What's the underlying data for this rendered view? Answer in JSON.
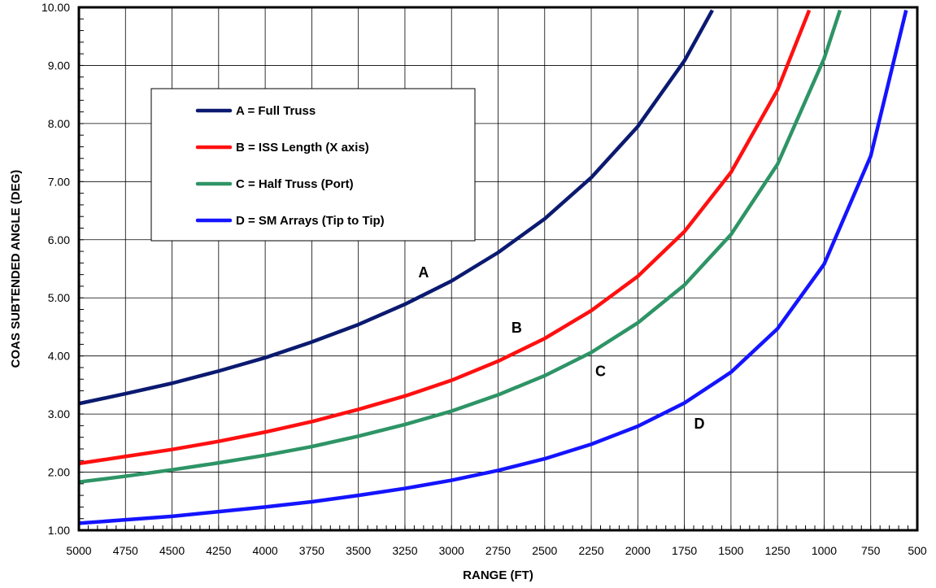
{
  "chart_data": {
    "type": "line",
    "title": "",
    "xlabel": "RANGE (FT)",
    "ylabel": "COAS SUBTENDED ANGLE (DEG)",
    "xlim": [
      5000,
      500
    ],
    "x_reversed": true,
    "ylim": [
      1.0,
      10.0
    ],
    "grid": true,
    "legend_position": "top-left",
    "x_ticks": [
      "5000",
      "4750",
      "4500",
      "4250",
      "4000",
      "3750",
      "3500",
      "3250",
      "3000",
      "2750",
      "2500",
      "2250",
      "2000",
      "1750",
      "1500",
      "1250",
      "1000",
      "750",
      "500"
    ],
    "y_ticks": [
      "1.00",
      "2.00",
      "3.00",
      "4.00",
      "5.00",
      "6.00",
      "7.00",
      "8.00",
      "9.00",
      "10.00"
    ],
    "series": [
      {
        "name": "A = Full Truss",
        "label": "A",
        "label_at": [
          3150,
          5.35
        ],
        "color": "#0b1a70",
        "points": [
          [
            5000,
            3.18
          ],
          [
            4750,
            3.35
          ],
          [
            4500,
            3.53
          ],
          [
            4250,
            3.74
          ],
          [
            4000,
            3.97
          ],
          [
            3750,
            4.24
          ],
          [
            3500,
            4.54
          ],
          [
            3250,
            4.89
          ],
          [
            3000,
            5.29
          ],
          [
            2750,
            5.78
          ],
          [
            2500,
            6.36
          ],
          [
            2250,
            7.07
          ],
          [
            2000,
            7.95
          ],
          [
            1750,
            9.08
          ],
          [
            1600,
            9.95
          ]
        ]
      },
      {
        "name": "B = ISS Length (X axis)",
        "label": "B",
        "label_at": [
          2650,
          4.4
        ],
        "color": "#ff1010",
        "points": [
          [
            5000,
            2.15
          ],
          [
            4750,
            2.27
          ],
          [
            4500,
            2.39
          ],
          [
            4250,
            2.53
          ],
          [
            4000,
            2.69
          ],
          [
            3750,
            2.87
          ],
          [
            3500,
            3.08
          ],
          [
            3250,
            3.31
          ],
          [
            3000,
            3.58
          ],
          [
            2750,
            3.91
          ],
          [
            2500,
            4.3
          ],
          [
            2250,
            4.78
          ],
          [
            2000,
            5.37
          ],
          [
            1750,
            6.14
          ],
          [
            1500,
            7.16
          ],
          [
            1250,
            8.58
          ],
          [
            1080,
            9.95
          ]
        ]
      },
      {
        "name": "C = Half Truss (Port)",
        "label": "C",
        "label_at": [
          2200,
          3.65
        ],
        "color": "#2e9466",
        "points": [
          [
            5000,
            1.83
          ],
          [
            4750,
            1.93
          ],
          [
            4500,
            2.04
          ],
          [
            4250,
            2.16
          ],
          [
            4000,
            2.29
          ],
          [
            3750,
            2.44
          ],
          [
            3500,
            2.62
          ],
          [
            3250,
            2.82
          ],
          [
            3000,
            3.05
          ],
          [
            2750,
            3.33
          ],
          [
            2500,
            3.66
          ],
          [
            2250,
            4.06
          ],
          [
            2000,
            4.57
          ],
          [
            1750,
            5.22
          ],
          [
            1500,
            6.09
          ],
          [
            1250,
            7.3
          ],
          [
            1000,
            9.12
          ],
          [
            915,
            9.95
          ]
        ]
      },
      {
        "name": "D = SM Arrays (Tip to Tip)",
        "label": "D",
        "label_at": [
          1670,
          2.75
        ],
        "color": "#1414ff",
        "points": [
          [
            5000,
            1.12
          ],
          [
            4750,
            1.18
          ],
          [
            4500,
            1.24
          ],
          [
            4250,
            1.32
          ],
          [
            4000,
            1.4
          ],
          [
            3750,
            1.49
          ],
          [
            3500,
            1.6
          ],
          [
            3250,
            1.72
          ],
          [
            3000,
            1.86
          ],
          [
            2750,
            2.03
          ],
          [
            2500,
            2.23
          ],
          [
            2250,
            2.48
          ],
          [
            2000,
            2.79
          ],
          [
            1750,
            3.19
          ],
          [
            1500,
            3.72
          ],
          [
            1250,
            4.47
          ],
          [
            1000,
            5.58
          ],
          [
            750,
            7.44
          ],
          [
            560,
            9.95
          ]
        ]
      }
    ]
  }
}
